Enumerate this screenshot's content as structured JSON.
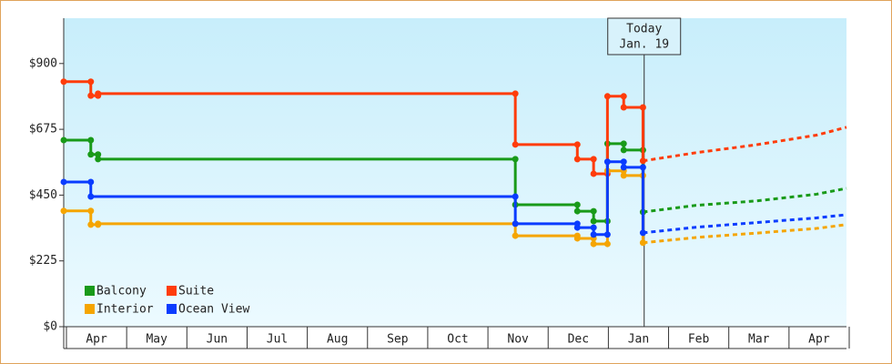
{
  "chart_data": {
    "type": "step-line",
    "categories": [
      "Apr",
      "May",
      "Jun",
      "Jul",
      "Aug",
      "Sep",
      "Oct",
      "Nov",
      "Dec",
      "Jan",
      "Feb",
      "Mar",
      "Apr"
    ],
    "xlim": [
      0,
      13
    ],
    "xticks": [
      0,
      1,
      2,
      3,
      4,
      5,
      6,
      7,
      8,
      9,
      10,
      11,
      12,
      13
    ],
    "ylim": [
      0,
      1055
    ],
    "yticks": [
      {
        "value": 0,
        "label": "$0"
      },
      {
        "value": 225,
        "label": "$225"
      },
      {
        "value": 450,
        "label": "$450"
      },
      {
        "value": 675,
        "label": "$675"
      },
      {
        "value": 900,
        "label": "$900"
      }
    ],
    "annotation": {
      "x": 9.64,
      "lines": [
        "Today",
        "Jan. 19"
      ]
    },
    "series": [
      {
        "name": "Balcony",
        "color": "#199a19",
        "x": [
          0,
          0.45,
          0.57,
          7.5,
          8.53,
          8.8,
          9.03,
          9.3,
          9.62
        ],
        "values": [
          638,
          589,
          573,
          417,
          395,
          361,
          626,
          604,
          392
        ],
        "forecast_x": [
          10.5,
          11.5,
          12.5,
          13
        ],
        "forecast_values": [
          415,
          430,
          453,
          473
        ]
      },
      {
        "name": "Suite",
        "color": "#ff3c0a",
        "x": [
          0,
          0.45,
          0.57,
          7.5,
          8.53,
          8.8,
          9.03,
          9.3,
          9.62
        ],
        "values": [
          838,
          790,
          797,
          623,
          573,
          523,
          788,
          750,
          567
        ],
        "forecast_x": [
          10.5,
          11.5,
          12.5,
          13
        ],
        "forecast_values": [
          595,
          622,
          655,
          682
        ]
      },
      {
        "name": "Interior",
        "color": "#f5a500",
        "x": [
          0,
          0.45,
          0.57,
          7.5,
          8.53,
          8.8,
          9.03,
          9.3,
          9.62
        ],
        "values": [
          396,
          349,
          352,
          311,
          302,
          283,
          533,
          517,
          287
        ],
        "forecast_x": [
          10.5,
          11.5,
          12.5,
          13
        ],
        "forecast_values": [
          305,
          320,
          336,
          349
        ]
      },
      {
        "name": "Ocean View",
        "color": "#0a3cff",
        "x": [
          0,
          0.45,
          7.5,
          8.53,
          8.8,
          9.03,
          9.3,
          9.62
        ],
        "values": [
          495,
          445,
          352,
          339,
          315,
          564,
          545,
          321
        ],
        "forecast_x": [
          10.5,
          11.5,
          12.5,
          13
        ],
        "forecast_values": [
          340,
          356,
          372,
          383
        ]
      }
    ]
  }
}
